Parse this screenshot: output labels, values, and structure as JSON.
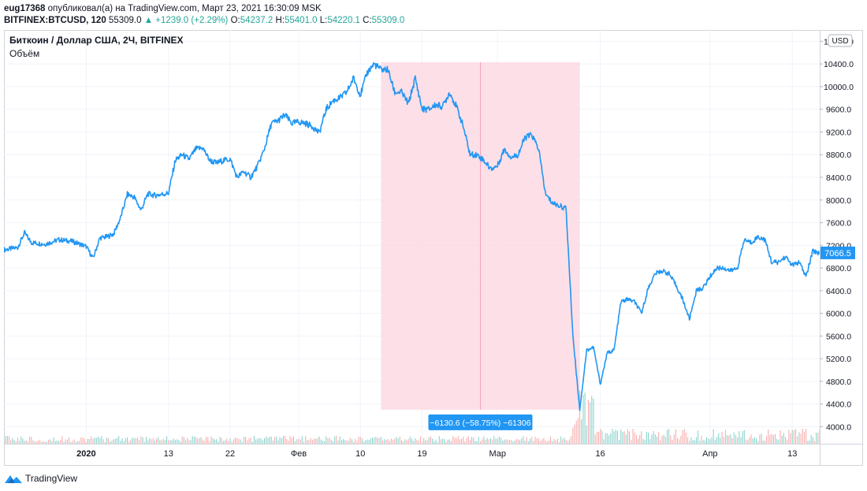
{
  "header": {
    "author": "eug17368",
    "published_text": "опубликовал(а) на TradingView.com, Март 23, 2021 16:30:09 MSK",
    "symbol": "BITFINEX:BTCUSD, 120",
    "last": "55309.0",
    "change_arrow": "▲",
    "change": "+1239.0 (+2.29%)",
    "o_label": "O:",
    "o_value": "54237.2",
    "h_label": "H:",
    "h_value": "55401.0",
    "l_label": "L:",
    "l_value": "54220.1",
    "c_label": "C:",
    "c_value": "55309.0"
  },
  "legend": {
    "title": "Биткоин / Доллар США, 2Ч, BITFINEX",
    "volume_label": "Объём"
  },
  "currency_button": "USD",
  "price_badge": "7066.5",
  "measure_label": "−6130.6 (−58.75%) −61306",
  "footer": {
    "brand": "TradingView"
  },
  "colors": {
    "line": "#2196f3",
    "measure_fill": "#fcd9e3",
    "measure_label_bg": "#2196f3",
    "volume_up": "#82cfc8",
    "volume_down": "#f7a6a6",
    "axis_text": "#131722",
    "grid": "#f0f3fa"
  },
  "chart_data": {
    "type": "line",
    "title": "Биткоин / Доллар США, 2Ч, BITFINEX",
    "xlabel": "",
    "ylabel": "",
    "y_axis_ticks": [
      4000,
      4400,
      4800,
      5200,
      5600,
      6000,
      6400,
      6800,
      7200,
      7600,
      8000,
      8400,
      8800,
      9200,
      9600,
      10000,
      10400,
      10800
    ],
    "y_tick_labels": [
      "4000.0",
      "4400.0",
      "4800.0",
      "5200.0",
      "5600.0",
      "6000.0",
      "6400.0",
      "6800.0",
      "7200.0",
      "7600.0",
      "8000.0",
      "8400.0",
      "8800.0",
      "9200.0",
      "9600.0",
      "10000.0",
      "10400.0",
      "10800.0"
    ],
    "ylim": [
      3700,
      11000
    ],
    "x_axis_ticks": [
      {
        "date": "2020-01-01",
        "label": "2020"
      },
      {
        "date": "2020-01-13",
        "label": "13"
      },
      {
        "date": "2020-01-22",
        "label": "22"
      },
      {
        "date": "2020-02-01",
        "label": "Фев"
      },
      {
        "date": "2020-02-10",
        "label": "10"
      },
      {
        "date": "2020-02-19",
        "label": "19"
      },
      {
        "date": "2020-03-01",
        "label": "Мар"
      },
      {
        "date": "2020-03-16",
        "label": "16"
      },
      {
        "date": "2020-04-01",
        "label": "Апр"
      },
      {
        "date": "2020-04-13",
        "label": "13"
      }
    ],
    "xlim": [
      "2019-12-20",
      "2020-04-17"
    ],
    "series": [
      {
        "points": [
          {
            "date": "2019-12-20",
            "y": 7120
          },
          {
            "date": "2019-12-22",
            "y": 7160
          },
          {
            "date": "2019-12-23",
            "y": 7420
          },
          {
            "date": "2019-12-24",
            "y": 7250
          },
          {
            "date": "2019-12-26",
            "y": 7220
          },
          {
            "date": "2019-12-28",
            "y": 7300
          },
          {
            "date": "2019-12-30",
            "y": 7270
          },
          {
            "date": "2020-01-01",
            "y": 7180
          },
          {
            "date": "2020-01-02",
            "y": 6970
          },
          {
            "date": "2020-01-03",
            "y": 7330
          },
          {
            "date": "2020-01-04",
            "y": 7350
          },
          {
            "date": "2020-01-05",
            "y": 7400
          },
          {
            "date": "2020-01-06",
            "y": 7680
          },
          {
            "date": "2020-01-07",
            "y": 8100
          },
          {
            "date": "2020-01-08",
            "y": 8050
          },
          {
            "date": "2020-01-09",
            "y": 7820
          },
          {
            "date": "2020-01-10",
            "y": 8110
          },
          {
            "date": "2020-01-11",
            "y": 8080
          },
          {
            "date": "2020-01-13",
            "y": 8120
          },
          {
            "date": "2020-01-14",
            "y": 8700
          },
          {
            "date": "2020-01-15",
            "y": 8800
          },
          {
            "date": "2020-01-16",
            "y": 8720
          },
          {
            "date": "2020-01-17",
            "y": 8900
          },
          {
            "date": "2020-01-18",
            "y": 8920
          },
          {
            "date": "2020-01-19",
            "y": 8700
          },
          {
            "date": "2020-01-20",
            "y": 8650
          },
          {
            "date": "2020-01-21",
            "y": 8700
          },
          {
            "date": "2020-01-22",
            "y": 8720
          },
          {
            "date": "2020-01-23",
            "y": 8400
          },
          {
            "date": "2020-01-24",
            "y": 8500
          },
          {
            "date": "2020-01-25",
            "y": 8400
          },
          {
            "date": "2020-01-26",
            "y": 8600
          },
          {
            "date": "2020-01-27",
            "y": 8900
          },
          {
            "date": "2020-01-28",
            "y": 9350
          },
          {
            "date": "2020-01-29",
            "y": 9400
          },
          {
            "date": "2020-01-30",
            "y": 9500
          },
          {
            "date": "2020-01-31",
            "y": 9350
          },
          {
            "date": "2020-02-01",
            "y": 9380
          },
          {
            "date": "2020-02-02",
            "y": 9350
          },
          {
            "date": "2020-02-03",
            "y": 9300
          },
          {
            "date": "2020-02-04",
            "y": 9180
          },
          {
            "date": "2020-02-05",
            "y": 9600
          },
          {
            "date": "2020-02-06",
            "y": 9750
          },
          {
            "date": "2020-02-07",
            "y": 9800
          },
          {
            "date": "2020-02-08",
            "y": 9900
          },
          {
            "date": "2020-02-09",
            "y": 10150
          },
          {
            "date": "2020-02-10",
            "y": 9850
          },
          {
            "date": "2020-02-11",
            "y": 10250
          },
          {
            "date": "2020-02-12",
            "y": 10400
          },
          {
            "date": "2020-02-13",
            "y": 10300
          },
          {
            "date": "2020-02-14",
            "y": 10300
          },
          {
            "date": "2020-02-15",
            "y": 9900
          },
          {
            "date": "2020-02-16",
            "y": 9900
          },
          {
            "date": "2020-02-17",
            "y": 9700
          },
          {
            "date": "2020-02-18",
            "y": 10150
          },
          {
            "date": "2020-02-19",
            "y": 9600
          },
          {
            "date": "2020-02-20",
            "y": 9600
          },
          {
            "date": "2020-02-21",
            "y": 9680
          },
          {
            "date": "2020-02-22",
            "y": 9650
          },
          {
            "date": "2020-02-23",
            "y": 9900
          },
          {
            "date": "2020-02-24",
            "y": 9650
          },
          {
            "date": "2020-02-25",
            "y": 9300
          },
          {
            "date": "2020-02-26",
            "y": 8800
          },
          {
            "date": "2020-02-27",
            "y": 8800
          },
          {
            "date": "2020-02-28",
            "y": 8700
          },
          {
            "date": "2020-02-29",
            "y": 8550
          },
          {
            "date": "2020-03-01",
            "y": 8600
          },
          {
            "date": "2020-03-02",
            "y": 8900
          },
          {
            "date": "2020-03-03",
            "y": 8750
          },
          {
            "date": "2020-03-04",
            "y": 8800
          },
          {
            "date": "2020-03-05",
            "y": 9100
          },
          {
            "date": "2020-03-06",
            "y": 9150
          },
          {
            "date": "2020-03-07",
            "y": 8900
          },
          {
            "date": "2020-03-08",
            "y": 8100
          },
          {
            "date": "2020-03-09",
            "y": 7950
          },
          {
            "date": "2020-03-10",
            "y": 7900
          },
          {
            "date": "2020-03-11",
            "y": 7850
          },
          {
            "date": "2020-03-12",
            "y": 5600
          },
          {
            "date": "2020-03-13",
            "y": 4300
          },
          {
            "date": "2020-03-14",
            "y": 5350
          },
          {
            "date": "2020-03-15",
            "y": 5400
          },
          {
            "date": "2020-03-16",
            "y": 4750
          },
          {
            "date": "2020-03-17",
            "y": 5300
          },
          {
            "date": "2020-03-18",
            "y": 5350
          },
          {
            "date": "2020-03-19",
            "y": 6200
          },
          {
            "date": "2020-03-20",
            "y": 6250
          },
          {
            "date": "2020-03-21",
            "y": 6200
          },
          {
            "date": "2020-03-22",
            "y": 6000
          },
          {
            "date": "2020-03-23",
            "y": 6450
          },
          {
            "date": "2020-03-24",
            "y": 6700
          },
          {
            "date": "2020-03-25",
            "y": 6750
          },
          {
            "date": "2020-03-26",
            "y": 6700
          },
          {
            "date": "2020-03-27",
            "y": 6500
          },
          {
            "date": "2020-03-28",
            "y": 6250
          },
          {
            "date": "2020-03-29",
            "y": 5900
          },
          {
            "date": "2020-03-30",
            "y": 6400
          },
          {
            "date": "2020-03-31",
            "y": 6450
          },
          {
            "date": "2020-04-01",
            "y": 6650
          },
          {
            "date": "2020-04-02",
            "y": 6800
          },
          {
            "date": "2020-04-03",
            "y": 6800
          },
          {
            "date": "2020-04-04",
            "y": 6750
          },
          {
            "date": "2020-04-05",
            "y": 6800
          },
          {
            "date": "2020-04-06",
            "y": 7300
          },
          {
            "date": "2020-04-07",
            "y": 7250
          },
          {
            "date": "2020-04-08",
            "y": 7350
          },
          {
            "date": "2020-04-09",
            "y": 7300
          },
          {
            "date": "2020-04-10",
            "y": 6900
          },
          {
            "date": "2020-04-11",
            "y": 6900
          },
          {
            "date": "2020-04-12",
            "y": 7000
          },
          {
            "date": "2020-04-13",
            "y": 6850
          },
          {
            "date": "2020-04-14",
            "y": 6900
          },
          {
            "date": "2020-04-15",
            "y": 6650
          },
          {
            "date": "2020-04-16",
            "y": 7100
          },
          {
            "date": "2020-04-17",
            "y": 7066.5
          }
        ]
      }
    ],
    "measure": {
      "start_date": "2020-02-13",
      "end_date": "2020-03-13",
      "high": 10430,
      "low": 4300,
      "change": -6130.6,
      "change_percent": -58.75
    },
    "current_price": 7066.5,
    "grid": true,
    "volume_shown": true
  }
}
